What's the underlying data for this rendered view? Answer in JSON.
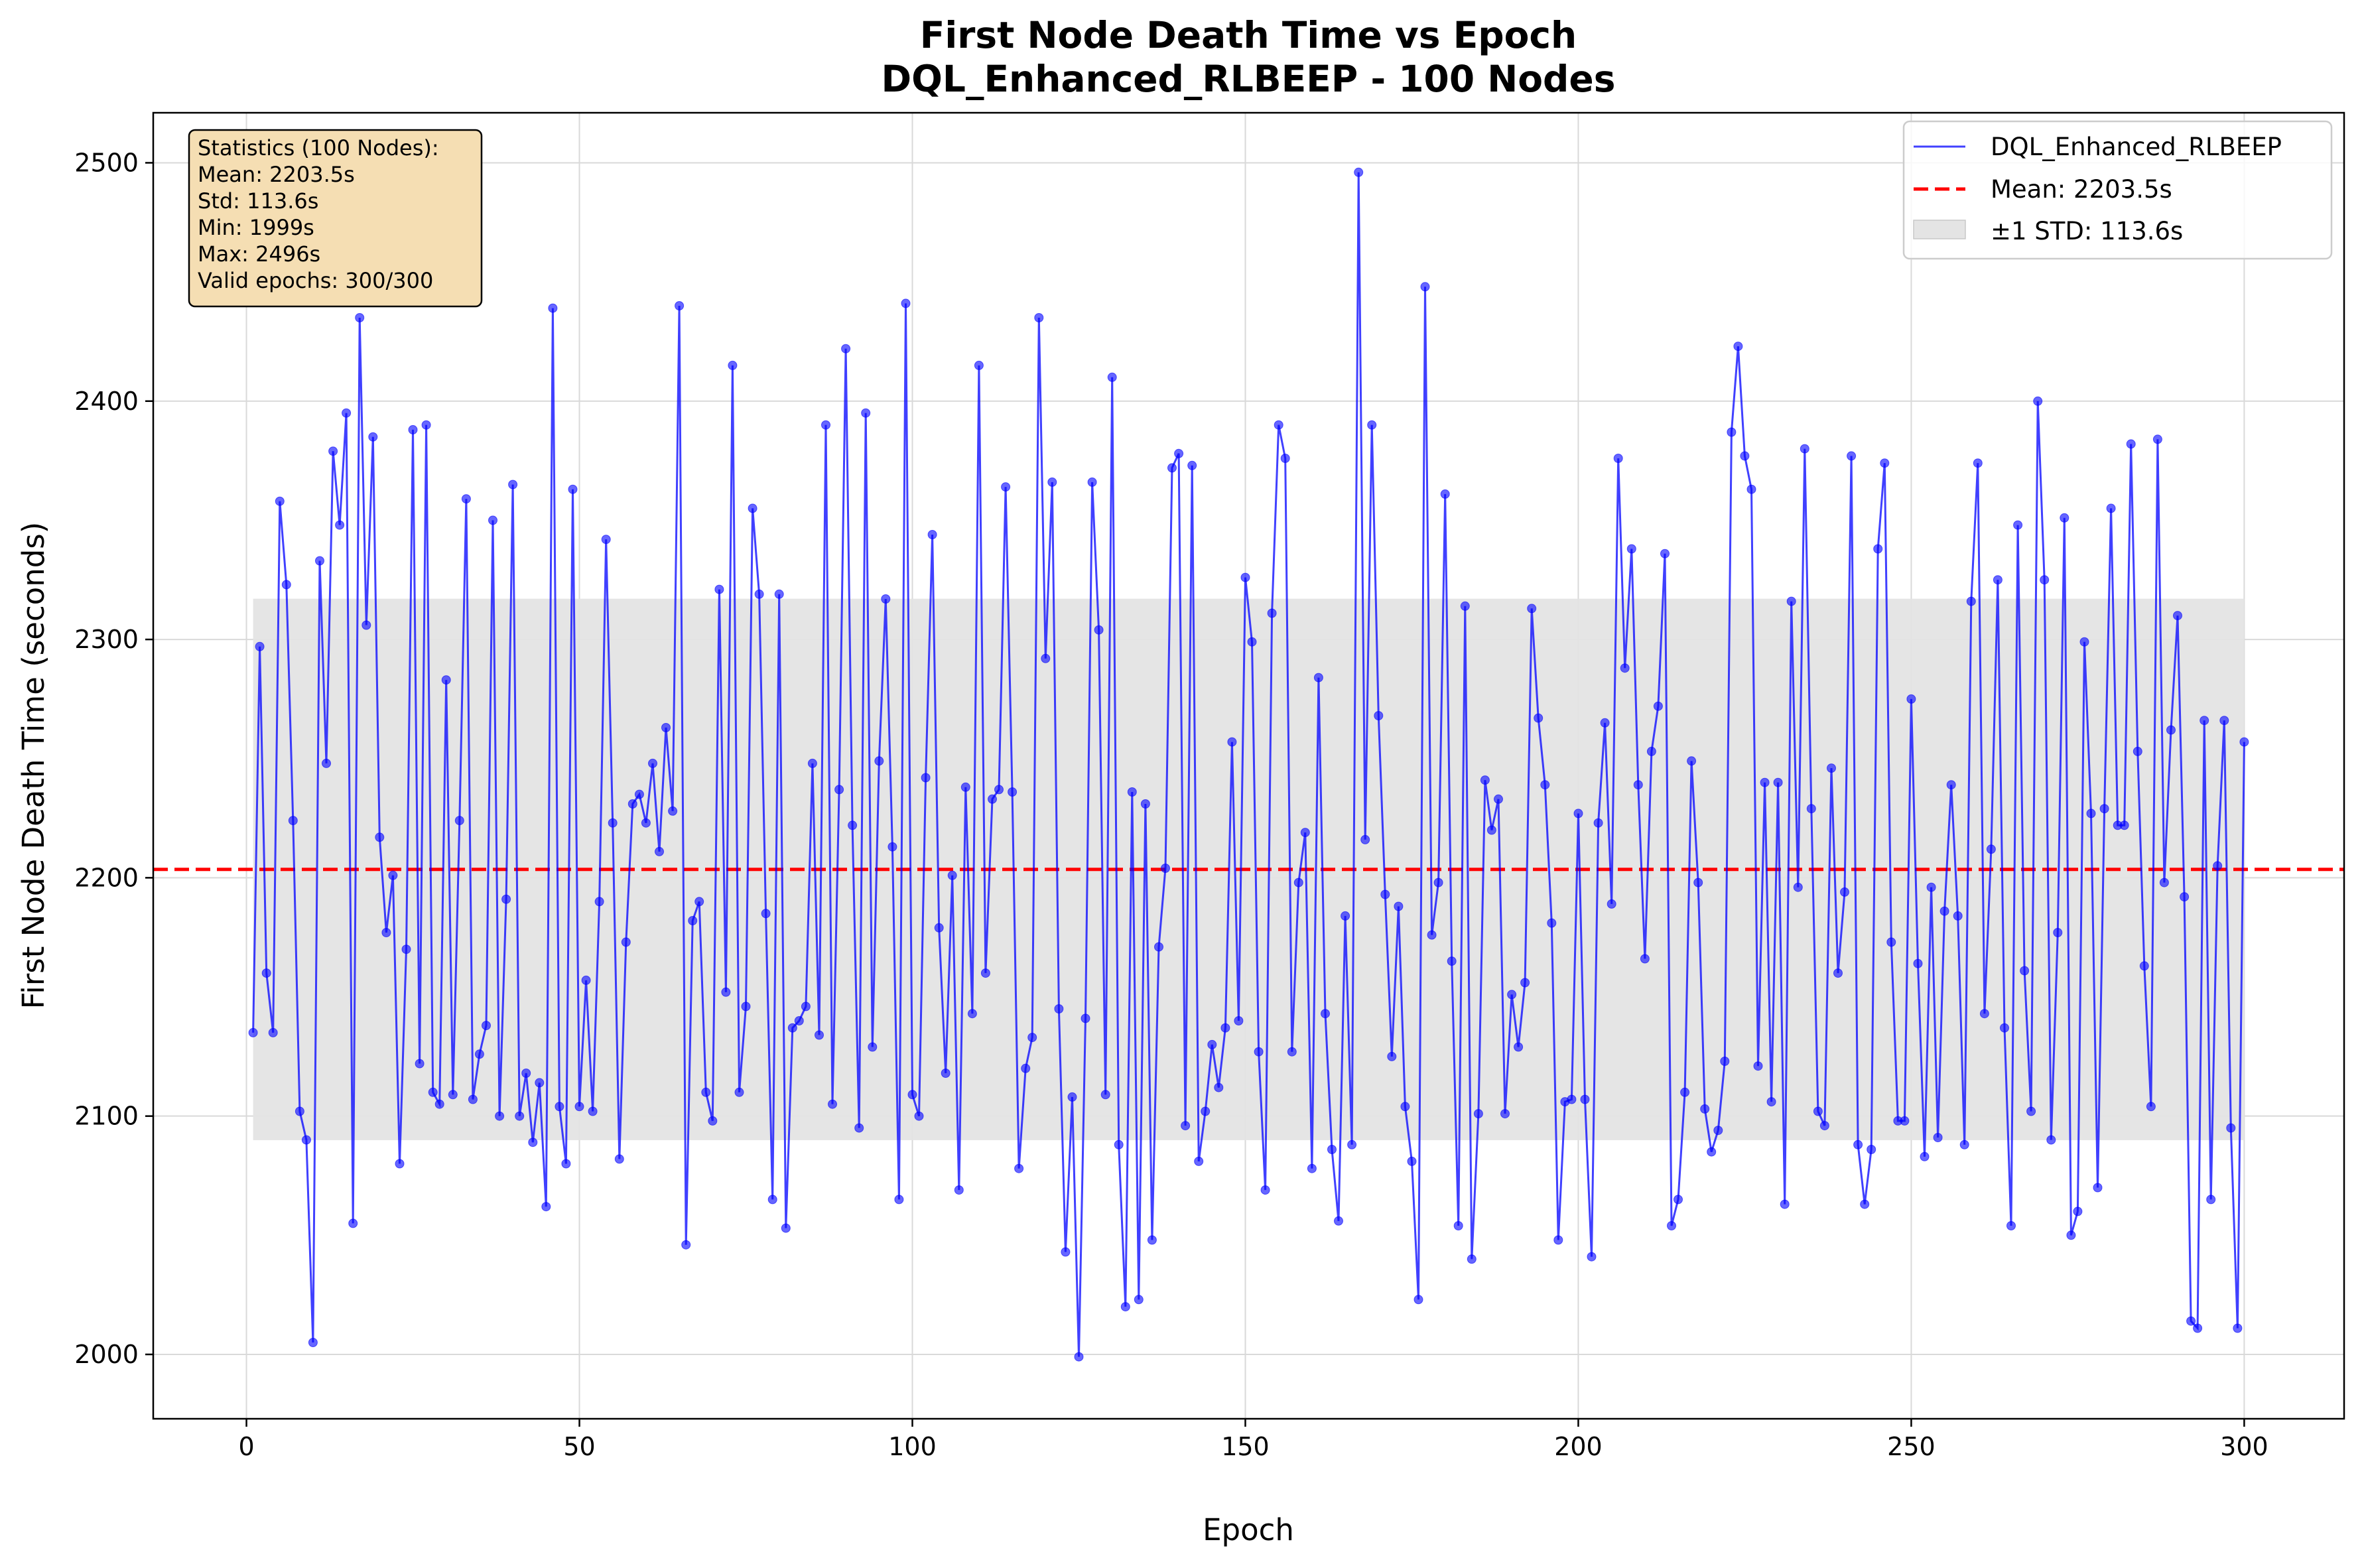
{
  "chart_data": {
    "type": "line",
    "title_line1": "First Node Death Time vs Epoch",
    "title_line2": "DQL_Enhanced_RLBEEP - 100 Nodes",
    "xlabel": "Epoch",
    "ylabel": "First Node Death Time (seconds)",
    "xlim": [
      -14,
      315
    ],
    "ylim": [
      1973,
      2521
    ],
    "xticks": [
      0,
      50,
      100,
      150,
      200,
      250,
      300
    ],
    "yticks": [
      2000,
      2100,
      2200,
      2300,
      2400,
      2500
    ],
    "grid": true,
    "legend_position": "upper right",
    "legend": {
      "series": "DQL_Enhanced_RLBEEP",
      "mean": "Mean: 2203.5s",
      "std": "±1 STD: 113.6s"
    },
    "stats_box": {
      "position": "upper left",
      "lines": [
        "Statistics (100 Nodes):",
        "Mean: 2203.5s",
        "Std: 113.6s",
        "Min: 1999s",
        "Max: 2496s",
        "Valid epochs: 300/300"
      ]
    },
    "mean": 2203.5,
    "std": 113.6,
    "std_band": [
      2089.9,
      2317.1
    ],
    "colors": {
      "series": "#0000ff",
      "mean_line": "#ff0000",
      "std_band": "#e4e4e4",
      "stats_box": "#f5deb3"
    },
    "series": [
      {
        "name": "DQL_Enhanced_RLBEEP",
        "x_start": 1,
        "x_step": 1,
        "values": [
          2135,
          2297,
          2160,
          2135,
          2358,
          2323,
          2224,
          2102,
          2090,
          2005,
          2333,
          2248,
          2379,
          2348,
          2395,
          2055,
          2435,
          2306,
          2385,
          2217,
          2177,
          2201,
          2080,
          2170,
          2388,
          2122,
          2390,
          2110,
          2105,
          2283,
          2109,
          2224,
          2359,
          2107,
          2126,
          2138,
          2350,
          2100,
          2191,
          2365,
          2100,
          2118,
          2089,
          2114,
          2062,
          2439,
          2104,
          2080,
          2363,
          2104,
          2157,
          2102,
          2190,
          2342,
          2223,
          2082,
          2173,
          2231,
          2235,
          2223,
          2248,
          2211,
          2263,
          2228,
          2440,
          2046,
          2182,
          2190,
          2110,
          2098,
          2321,
          2152,
          2415,
          2110,
          2146,
          2355,
          2319,
          2185,
          2065,
          2319,
          2053,
          2137,
          2140,
          2146,
          2248,
          2134,
          2390,
          2105,
          2237,
          2422,
          2222,
          2095,
          2395,
          2129,
          2249,
          2317,
          2213,
          2065,
          2441,
          2109,
          2100,
          2242,
          2344,
          2179,
          2118,
          2201,
          2069,
          2238,
          2143,
          2415,
          2160,
          2233,
          2237,
          2364,
          2236,
          2078,
          2120,
          2133,
          2435,
          2292,
          2366,
          2145,
          2043,
          2108,
          1999,
          2141,
          2366,
          2304,
          2109,
          2410,
          2088,
          2020,
          2236,
          2023,
          2231,
          2048,
          2171,
          2204,
          2372,
          2378,
          2096,
          2373,
          2081,
          2102,
          2130,
          2112,
          2137,
          2257,
          2140,
          2326,
          2299,
          2127,
          2069,
          2311,
          2390,
          2376,
          2127,
          2198,
          2219,
          2078,
          2284,
          2143,
          2086,
          2056,
          2184,
          2088,
          2496,
          2216,
          2390,
          2268,
          2193,
          2125,
          2188,
          2104,
          2081,
          2023,
          2448,
          2176,
          2198,
          2361,
          2165,
          2054,
          2314,
          2040,
          2101,
          2241,
          2220,
          2233,
          2101,
          2151,
          2129,
          2156,
          2313,
          2267,
          2239,
          2181,
          2048,
          2106,
          2107,
          2227,
          2107,
          2041,
          2223,
          2265,
          2189,
          2376,
          2288,
          2338,
          2239,
          2166,
          2253,
          2272,
          2336,
          2054,
          2065,
          2110,
          2249,
          2198,
          2103,
          2085,
          2094,
          2123,
          2387,
          2423,
          2377,
          2363,
          2121,
          2240,
          2106,
          2240,
          2063,
          2316,
          2196,
          2380,
          2229,
          2102,
          2096,
          2246,
          2160,
          2194,
          2377,
          2088,
          2063,
          2086,
          2338,
          2374,
          2173,
          2098,
          2098,
          2275,
          2164,
          2083,
          2196,
          2091,
          2186,
          2239,
          2184,
          2088,
          2316,
          2374,
          2143,
          2212,
          2325,
          2137,
          2054,
          2348,
          2161,
          2102,
          2400,
          2325,
          2090,
          2177,
          2351,
          2050,
          2060,
          2299,
          2227,
          2070,
          2229,
          2355,
          2222,
          2222,
          2382,
          2253,
          2163,
          2104,
          2384,
          2198,
          2262,
          2310,
          2192,
          2014,
          2011,
          2266,
          2065,
          2205,
          2266,
          2095,
          2011,
          2257
        ]
      }
    ]
  }
}
